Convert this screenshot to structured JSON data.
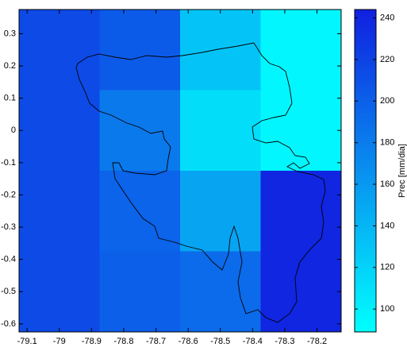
{
  "chart_data": {
    "type": "heatmap",
    "x": [
      -79,
      -78.75,
      -78.5,
      -78.25
    ],
    "y": [
      0.25,
      0,
      -0.25,
      -0.5
    ],
    "values": [
      [
        215,
        203,
        130,
        95
      ],
      [
        215,
        182,
        112,
        95
      ],
      [
        215,
        197,
        152,
        240
      ],
      [
        215,
        200,
        192,
        240
      ]
    ],
    "xlim": [
      -79.125,
      -78.125
    ],
    "ylim": [
      -0.625,
      0.375
    ],
    "xticks": [
      -79.1,
      -79,
      -78.9,
      -78.8,
      -78.7,
      -78.6,
      -78.5,
      -78.4,
      -78.3,
      -78.2
    ],
    "yticks": [
      -0.6,
      -0.5,
      -0.4,
      -0.3,
      -0.2,
      -0.1,
      0,
      0.1,
      0.2,
      0.3
    ],
    "colorbar": {
      "label": "Prec [mm/dia]",
      "lim": [
        89,
        244
      ],
      "ticks": [
        100,
        120,
        140,
        160,
        180,
        200,
        220,
        240
      ],
      "colors": [
        "#00ffff",
        "#1020e0"
      ]
    }
  }
}
